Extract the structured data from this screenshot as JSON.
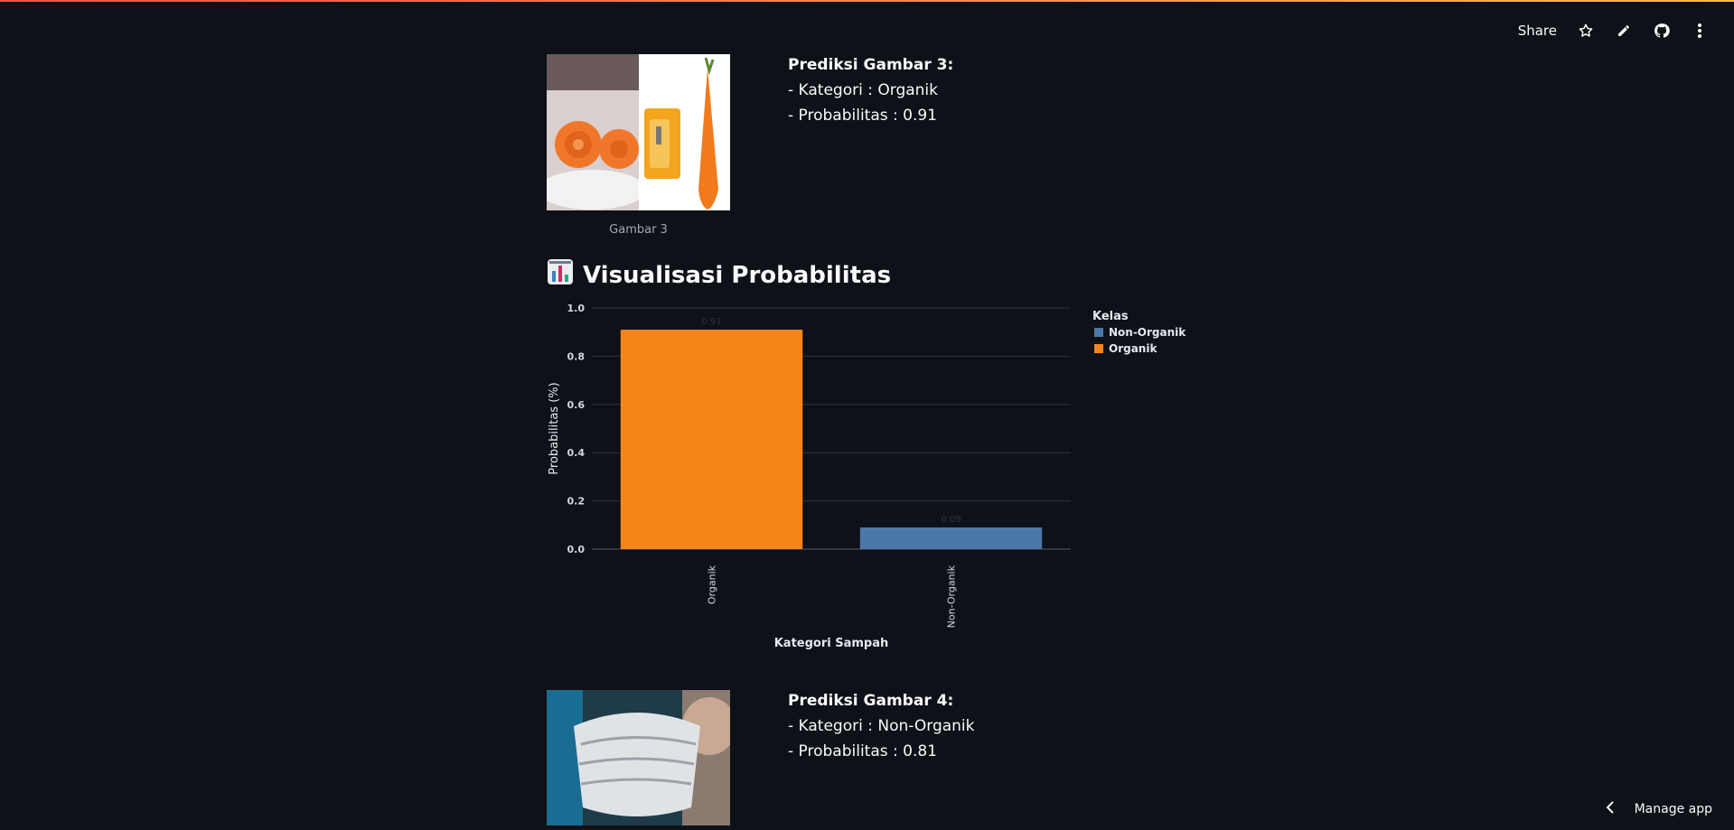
{
  "toolbar": {
    "share_label": "Share",
    "icons": [
      "star-icon",
      "pencil-icon",
      "github-icon",
      "more-vertical-icon"
    ]
  },
  "results": [
    {
      "caption": "Gambar 3",
      "title": "Prediksi Gambar 3:",
      "category_line": "- Kategori : Organik",
      "probability_line": "- Probabilitas : 0.91"
    },
    {
      "caption": "",
      "title": "Prediksi Gambar 4:",
      "category_line": "- Kategori : Non-Organik",
      "probability_line": "- Probabilitas : 0.81"
    }
  ],
  "section": {
    "emoji_icon": "bar-chart-icon",
    "title": "Visualisasi Probabilitas"
  },
  "chart_data": {
    "type": "bar",
    "categories": [
      "Organik",
      "Non-Organik"
    ],
    "values": [
      0.91,
      0.09
    ],
    "colors": [
      "#f58518",
      "#4c78a8"
    ],
    "xlabel": "Kategori Sampah",
    "ylabel": "Probabilitas (%)",
    "ylim": [
      0,
      1.0
    ],
    "yticks": [
      "0.0",
      "0.2",
      "0.4",
      "0.6",
      "0.8",
      "1.0"
    ],
    "legend": {
      "title": "Kelas",
      "entries": [
        {
          "label": "Non-Organik",
          "color": "#4c78a8"
        },
        {
          "label": "Organik",
          "color": "#f58518"
        }
      ],
      "position": "right"
    },
    "grid": true
  },
  "footer": {
    "manage_label": "Manage app"
  }
}
